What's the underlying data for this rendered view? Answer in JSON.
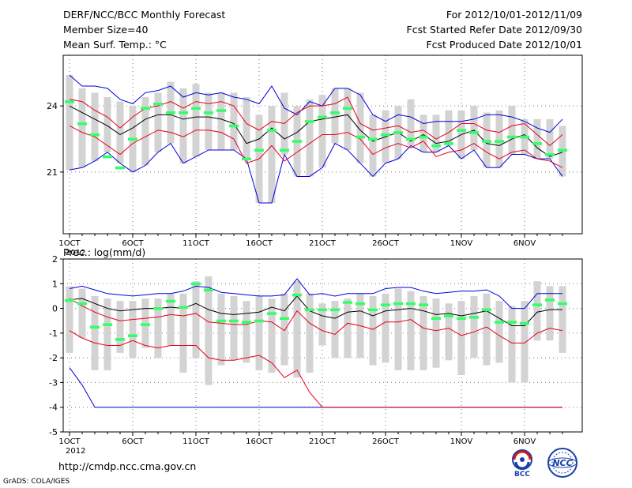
{
  "header": {
    "title": "DERF/NCC/BCC Monthly Forecast",
    "member_size": "Member Size=40",
    "variable": "Mean Surf. Temp.: °C",
    "period": "For 2012/10/01-2012/11/09",
    "started": "Fcst Started Refer Date 2012/09/30",
    "produced": "Fcst Produced Date 2012/10/01"
  },
  "prec_label": "Prec.: log(mm/d)",
  "url": "http://cmdp.ncc.cma.gov.cn",
  "credit": "GrADS: COLA/IGES",
  "logos": {
    "bcc": "BCC",
    "ncc": "NCC"
  },
  "colors": {
    "box": "#d3d3d3",
    "obs": "#33ff66",
    "mean": "#000000",
    "inner": "#e8001a",
    "outer": "#0000dd",
    "grid": "#777777"
  },
  "chart_data": [
    {
      "type": "line",
      "name": "temperature",
      "title": "Mean Surf. Temp.: °C",
      "days": 40,
      "x_tick_labels": [
        "1OCT",
        "6OCT",
        "11OCT",
        "16OCT",
        "21OCT",
        "26OCT",
        "1NOV",
        "6NOV"
      ],
      "x_tick_days": [
        1,
        6,
        11,
        16,
        21,
        26,
        32,
        37
      ],
      "year_label": "2012",
      "ylim": [
        18.2,
        26.3
      ],
      "y_ticks": [
        21,
        24
      ],
      "series": [
        {
          "name": "max",
          "values": [
            21.1,
            21.2,
            21.5,
            21.9,
            21.4,
            21.0,
            21.3,
            21.9,
            22.3,
            21.4,
            21.7,
            22.0,
            22.0,
            22.0,
            21.6,
            19.6,
            19.6,
            21.8,
            20.8,
            20.8,
            21.2,
            22.3,
            22.0,
            21.4,
            20.8,
            21.4,
            21.6,
            22.2,
            21.9,
            21.9,
            22.2,
            21.6,
            22.0,
            21.2,
            21.2,
            21.8,
            21.8,
            21.6,
            21.6,
            20.8
          ]
        },
        {
          "name": "min",
          "values": [
            25.4,
            24.8,
            24.6,
            24.4,
            24.2,
            24.0,
            24.4,
            24.6,
            25.1,
            24.8,
            25.0,
            24.6,
            24.6,
            24.6,
            24.4,
            23.6,
            24.0,
            24.6,
            24.0,
            24.3,
            24.5,
            24.8,
            24.8,
            24.6,
            23.6,
            23.8,
            24.0,
            24.3,
            23.6,
            23.6,
            23.8,
            23.8,
            24.0,
            23.7,
            23.8,
            24.0,
            23.4,
            23.4,
            23.4,
            23.1
          ]
        },
        {
          "name": "obs",
          "values": [
            24.2,
            23.2,
            22.7,
            21.7,
            21.2,
            22.5,
            23.9,
            24.1,
            23.7,
            23.7,
            23.9,
            23.7,
            23.8,
            23.1,
            21.6,
            22.0,
            22.9,
            22.0,
            22.4,
            23.3,
            23.5,
            23.7,
            23.9,
            22.6,
            22.5,
            22.7,
            22.8,
            22.5,
            22.6,
            22.2,
            22.3,
            22.9,
            22.8,
            22.4,
            22.4,
            22.6,
            22.6,
            22.3,
            21.8,
            22.0
          ]
        },
        {
          "name": "outer-lower",
          "values": [
            21.1,
            21.2,
            21.5,
            21.9,
            21.4,
            21.0,
            21.3,
            21.9,
            22.3,
            21.4,
            21.7,
            22.0,
            22.0,
            22.0,
            21.6,
            19.6,
            19.6,
            21.8,
            20.8,
            20.8,
            21.2,
            22.3,
            22.0,
            21.4,
            20.8,
            21.4,
            21.6,
            22.2,
            21.9,
            21.9,
            22.2,
            21.6,
            22.0,
            21.2,
            21.2,
            21.8,
            21.8,
            21.6,
            21.6,
            20.8
          ]
        },
        {
          "name": "outer-upper",
          "values": [
            25.4,
            24.9,
            24.9,
            24.8,
            24.3,
            24.1,
            24.6,
            24.7,
            24.9,
            24.4,
            24.6,
            24.5,
            24.6,
            24.4,
            24.3,
            24.1,
            24.9,
            23.9,
            23.6,
            24.2,
            24.0,
            24.8,
            24.8,
            24.5,
            23.6,
            23.3,
            23.6,
            23.5,
            23.2,
            23.3,
            23.3,
            23.3,
            23.4,
            23.6,
            23.6,
            23.5,
            23.3,
            23.0,
            22.8,
            23.4
          ]
        },
        {
          "name": "inner-lower",
          "values": [
            23.1,
            22.8,
            22.6,
            22.2,
            21.8,
            22.3,
            22.6,
            22.9,
            22.8,
            22.6,
            22.9,
            22.9,
            22.8,
            22.5,
            21.4,
            21.6,
            22.2,
            21.5,
            21.9,
            22.3,
            22.7,
            22.7,
            22.8,
            22.5,
            21.8,
            22.1,
            22.3,
            22.1,
            22.4,
            21.7,
            21.9,
            22.0,
            22.3,
            21.9,
            21.6,
            21.9,
            22.0,
            21.6,
            21.5,
            21.2
          ]
        },
        {
          "name": "inner-upper",
          "values": [
            24.3,
            24.2,
            23.8,
            23.5,
            23.0,
            23.5,
            23.9,
            24.0,
            24.2,
            23.9,
            24.2,
            24.1,
            24.2,
            24.0,
            23.2,
            22.9,
            23.3,
            23.2,
            23.7,
            24.0,
            24.0,
            24.1,
            24.4,
            23.2,
            22.9,
            23.0,
            23.1,
            22.8,
            22.9,
            22.5,
            22.8,
            23.2,
            23.2,
            22.9,
            22.8,
            23.1,
            23.2,
            22.7,
            22.2,
            22.7
          ]
        },
        {
          "name": "mean",
          "values": [
            24.0,
            23.7,
            23.4,
            23.1,
            22.7,
            23.0,
            23.4,
            23.6,
            23.6,
            23.4,
            23.5,
            23.5,
            23.4,
            23.2,
            22.3,
            22.5,
            23.0,
            22.5,
            22.8,
            23.3,
            23.4,
            23.5,
            23.6,
            22.9,
            22.4,
            22.6,
            22.8,
            22.4,
            22.7,
            22.3,
            22.4,
            22.7,
            22.9,
            22.3,
            22.2,
            22.5,
            22.7,
            22.1,
            21.7,
            21.9
          ]
        }
      ]
    },
    {
      "type": "line",
      "name": "precipitation",
      "title": "Prec.: log(mm/d)",
      "days": 40,
      "x_tick_labels": [
        "1OCT",
        "6OCT",
        "11OCT",
        "16OCT",
        "21OCT",
        "26OCT",
        "1NOV",
        "6NOV"
      ],
      "x_tick_days": [
        1,
        6,
        11,
        16,
        21,
        26,
        32,
        37
      ],
      "year_label": "2012",
      "ylim": [
        -5,
        2
      ],
      "y_ticks": [
        -5,
        -4,
        -3,
        -2,
        -1,
        0,
        1,
        2
      ],
      "series": [
        {
          "name": "min",
          "values": [
            -1.8,
            -1.2,
            -2.5,
            -2.5,
            -1.8,
            -2.0,
            -1.6,
            -2.0,
            -1.5,
            -2.6,
            -2.0,
            -3.1,
            -2.3,
            -2.1,
            -2.2,
            -2.5,
            -2.6,
            -2.3,
            -2.8,
            -2.6,
            -1.5,
            -2.0,
            -2.0,
            -2.0,
            -2.3,
            -2.2,
            -2.5,
            -2.5,
            -2.5,
            -2.4,
            -2.1,
            -2.7,
            -2.0,
            -2.3,
            -2.2,
            -3.0,
            -3.0,
            -1.3,
            -1.3,
            -1.8
          ]
        },
        {
          "name": "max",
          "values": [
            0.9,
            0.8,
            0.5,
            0.4,
            0.3,
            0.3,
            0.4,
            0.4,
            0.6,
            0.6,
            1.1,
            1.3,
            0.6,
            0.5,
            0.3,
            0.5,
            0.4,
            0.6,
            1.1,
            0.6,
            0.2,
            0.3,
            0.4,
            0.6,
            0.5,
            0.6,
            0.8,
            0.7,
            0.5,
            0.4,
            0.2,
            0.3,
            0.5,
            0.6,
            0.3,
            0.1,
            0.3,
            1.1,
            0.9,
            0.9
          ]
        },
        {
          "name": "obs",
          "values": [
            0.33,
            0.2,
            -0.75,
            -0.65,
            -1.25,
            -1.1,
            -0.65,
            0.0,
            0.3,
            0.05,
            1.0,
            0.75,
            -0.5,
            -0.5,
            -0.55,
            -0.5,
            -0.2,
            -0.4,
            0.55,
            -0.05,
            -0.05,
            -0.05,
            0.25,
            0.2,
            -0.05,
            0.15,
            0.2,
            0.2,
            0.15,
            -0.4,
            -0.3,
            -0.4,
            -0.35,
            -0.05,
            -0.55,
            -0.55,
            -0.6,
            0.15,
            0.35,
            0.2
          ]
        },
        {
          "name": "outer-lower",
          "values": [
            -2.4,
            -3.1,
            -4.0,
            -4.0,
            -4.0,
            -4.0,
            -4.0,
            -4.0,
            -4.0,
            -4.0,
            -4.0,
            -4.0,
            -4.0,
            -4.0,
            -4.0,
            -4.0,
            -4.0,
            -4.0,
            -4.0,
            -4.0,
            -4.0,
            -4.0,
            -4.0,
            -4.0,
            -4.0,
            -4.0,
            -4.0,
            -4.0,
            -4.0,
            -4.0,
            -4.0,
            -4.0,
            -4.0,
            -4.0,
            -4.0,
            -4.0,
            -4.0,
            -4.0,
            -4.0,
            -4.0
          ]
        },
        {
          "name": "outer-upper",
          "values": [
            0.8,
            0.9,
            0.75,
            0.6,
            0.55,
            0.5,
            0.55,
            0.6,
            0.6,
            0.7,
            0.9,
            0.85,
            0.65,
            0.6,
            0.55,
            0.5,
            0.5,
            0.55,
            1.2,
            0.55,
            0.6,
            0.5,
            0.6,
            0.6,
            0.6,
            0.8,
            0.85,
            0.85,
            0.7,
            0.6,
            0.65,
            0.7,
            0.7,
            0.75,
            0.5,
            0.0,
            0.0,
            0.6,
            0.6,
            0.6
          ]
        },
        {
          "name": "inner-lower",
          "values": [
            -0.9,
            -1.2,
            -1.4,
            -1.5,
            -1.5,
            -1.3,
            -1.5,
            -1.6,
            -1.5,
            -1.5,
            -1.5,
            -2.0,
            -2.1,
            -2.1,
            -2.0,
            -1.9,
            -2.2,
            -2.8,
            -2.5,
            -3.4,
            -4.0,
            -4.0,
            -4.0,
            -4.0,
            -4.0,
            -4.0,
            -4.0,
            -4.0,
            -4.0,
            -4.0,
            -4.0,
            -4.0,
            -4.0,
            -4.0,
            -4.0,
            -4.0,
            -4.0,
            -4.0,
            -4.0,
            -4.0
          ]
        },
        {
          "name": "inner-upper",
          "values": [
            0.4,
            0.1,
            -0.15,
            -0.35,
            -0.5,
            -0.45,
            -0.4,
            -0.35,
            -0.25,
            -0.3,
            -0.2,
            -0.55,
            -0.6,
            -0.65,
            -0.65,
            -0.5,
            -0.55,
            -0.9,
            -0.1,
            -0.6,
            -0.9,
            -1.05,
            -0.6,
            -0.7,
            -0.85,
            -0.55,
            -0.55,
            -0.45,
            -0.8,
            -0.9,
            -0.8,
            -1.1,
            -0.95,
            -0.75,
            -1.1,
            -1.4,
            -1.4,
            -1.0,
            -0.8,
            -0.9
          ]
        },
        {
          "name": "mean",
          "values": [
            0.35,
            0.4,
            0.2,
            0.0,
            -0.1,
            -0.05,
            0.0,
            0.0,
            0.05,
            0.0,
            0.2,
            -0.05,
            -0.2,
            -0.25,
            -0.2,
            -0.15,
            0.05,
            -0.1,
            0.5,
            -0.1,
            -0.3,
            -0.4,
            -0.15,
            -0.1,
            -0.3,
            -0.1,
            -0.05,
            0.0,
            -0.1,
            -0.25,
            -0.2,
            -0.3,
            -0.2,
            -0.1,
            -0.4,
            -0.7,
            -0.7,
            -0.15,
            -0.05,
            -0.05
          ]
        }
      ]
    }
  ]
}
